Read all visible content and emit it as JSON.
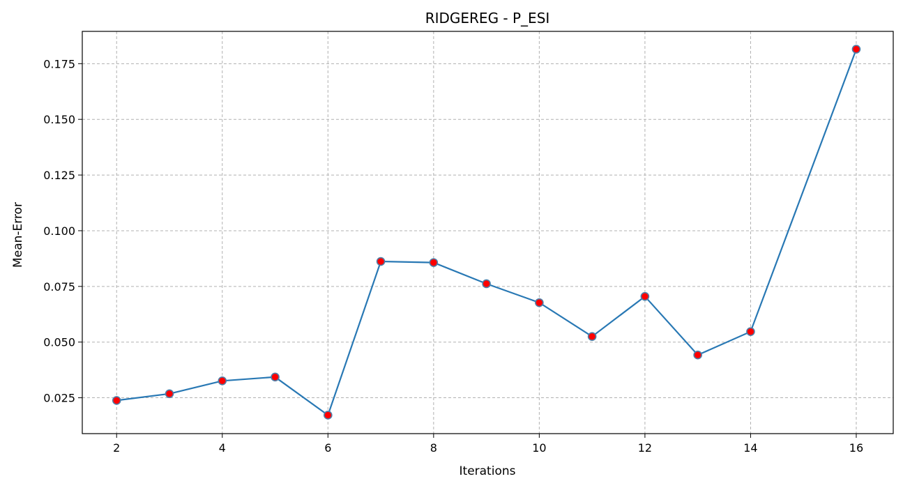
{
  "chart_data": {
    "type": "line",
    "title": "RIDGEREG - P_ESI",
    "xlabel": "Iterations",
    "ylabel": "Mean-Error",
    "x": [
      2,
      3,
      4,
      5,
      6,
      7,
      8,
      9,
      10,
      11,
      12,
      13,
      14,
      16
    ],
    "series": [
      {
        "values": [
          0.0238,
          0.0268,
          0.0326,
          0.0343,
          0.0172,
          0.0862,
          0.0857,
          0.0762,
          0.0677,
          0.0525,
          0.0705,
          0.0442,
          0.0547,
          0.1815
        ],
        "line_color": "#2878b4",
        "marker_face": "#ff0000",
        "marker_edge": "#4f7fa8"
      }
    ],
    "xlim": [
      1.35,
      16.7
    ],
    "ylim": [
      0.0089,
      0.1895
    ],
    "xticks": [
      2,
      4,
      6,
      8,
      10,
      12,
      14,
      16
    ],
    "xtick_labels": [
      "2",
      "4",
      "6",
      "8",
      "10",
      "12",
      "14",
      "16"
    ],
    "yticks": [
      0.025,
      0.05,
      0.075,
      0.1,
      0.125,
      0.15,
      0.175
    ],
    "ytick_labels": [
      "0.025",
      "0.050",
      "0.075",
      "0.100",
      "0.125",
      "0.150",
      "0.175"
    ],
    "grid": true,
    "grid_color": "#b0b0b0"
  }
}
